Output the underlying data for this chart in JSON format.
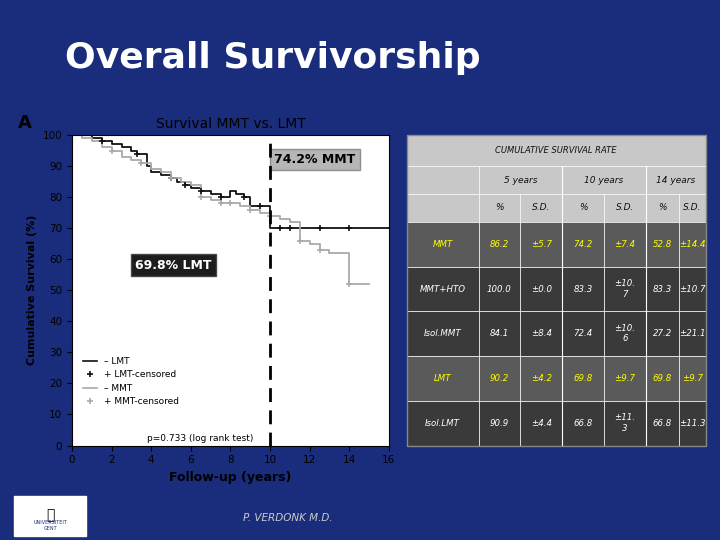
{
  "title": "Overall Survivorship",
  "subtitle": "Survival MMT vs. LMT",
  "panel_label": "A",
  "xlabel": "Follow-up (years)",
  "ylabel": "Cumulative Survival (%)",
  "xlim": [
    0,
    16
  ],
  "ylim": [
    0,
    100
  ],
  "xticks": [
    0,
    2,
    4,
    6,
    8,
    10,
    12,
    14,
    16
  ],
  "yticks": [
    0,
    10,
    20,
    30,
    40,
    50,
    60,
    70,
    80,
    90,
    100
  ],
  "dashed_line_x": 10,
  "annotation_mmt": "74.2% MMT",
  "annotation_lmt": "69.8% LMT",
  "p_value": "p=0.733 (log rank test)",
  "bg_color": "#1a2d7c",
  "title_color": "#ffffff",
  "lmt_color": "#111111",
  "mmt_color": "#aaaaaa",
  "lmt_x": [
    0,
    0.3,
    1,
    1.5,
    2,
    2.5,
    3,
    3.3,
    3.8,
    4.0,
    4.5,
    5.0,
    5.3,
    5.7,
    6.0,
    6.5,
    7.0,
    7.5,
    8.0,
    8.3,
    8.7,
    9.0,
    9.5,
    10.0,
    10.5,
    11.0,
    12.0,
    13.0,
    14.0,
    15.0,
    16.0
  ],
  "lmt_y": [
    100,
    100,
    99,
    98,
    97,
    96,
    95,
    94,
    90,
    88,
    87,
    86,
    85,
    84,
    83,
    82,
    81,
    80,
    82,
    81,
    80,
    77,
    77,
    70,
    70,
    70,
    70,
    70,
    70,
    70,
    70
  ],
  "mmt_x": [
    0,
    0.5,
    1.0,
    1.5,
    2.0,
    2.5,
    3.0,
    3.5,
    4.0,
    4.5,
    5.0,
    5.5,
    6.0,
    6.5,
    7.0,
    7.5,
    8.0,
    8.5,
    9.0,
    9.5,
    10.0,
    10.5,
    11.0,
    11.5,
    12.0,
    12.5,
    13.0,
    14.0,
    14.5,
    15.0
  ],
  "mmt_y": [
    100,
    99,
    98,
    96,
    95,
    93,
    92,
    91,
    89,
    88,
    86,
    85,
    84,
    80,
    79,
    78,
    78,
    77,
    76,
    75,
    74,
    73,
    72,
    66,
    65,
    63,
    62,
    52,
    52,
    52
  ],
  "lmt_censor_x": [
    1.5,
    3.3,
    5.0,
    5.7,
    6.5,
    7.5,
    8.7,
    9.5,
    10.5,
    11.0,
    12.5,
    14.0
  ],
  "lmt_censor_y": [
    98,
    94,
    86,
    84,
    82,
    80,
    80,
    77,
    70,
    70,
    70,
    70
  ],
  "mmt_censor_x": [
    2.0,
    3.5,
    5.0,
    6.5,
    7.5,
    8.0,
    9.0,
    10.0,
    11.5,
    12.5,
    14.0
  ],
  "mmt_censor_y": [
    95,
    91,
    86,
    80,
    78,
    78,
    76,
    74,
    66,
    63,
    52
  ],
  "table_header": "CUMULATIVE SURVIVAL RATE",
  "table_rows": [
    {
      "label": "MMT",
      "v5": "86.2",
      "sd5": "±5.7",
      "v10": "74.2",
      "sd10": "±7.4",
      "v14": "52.8",
      "sd14": "±14.4",
      "highlight": true
    },
    {
      "label": "MMT+HTO",
      "v5": "100.0",
      "sd5": "±0.0",
      "v10": "83.3",
      "sd10": "±10.\n7",
      "v14": "83.3",
      "sd14": "±10.7",
      "highlight": false
    },
    {
      "label": "Isol.MMT",
      "v5": "84.1",
      "sd5": "±8.4",
      "v10": "72.4",
      "sd10": "±10.\n6",
      "v14": "27.2",
      "sd14": "±21.1",
      "highlight": false
    },
    {
      "label": "LMT",
      "v5": "90.2",
      "sd5": "±4.2",
      "v10": "69.8",
      "sd10": "±9.7",
      "v14": "69.8",
      "sd14": "±9.7",
      "highlight": true
    },
    {
      "label": "Isol.LMT",
      "v5": "90.9",
      "sd5": "±4.4",
      "v10": "66.8",
      "sd10": "±11.\n3",
      "v14": "66.8",
      "sd14": "±11.3",
      "highlight": false
    }
  ],
  "footer_text": "P. VERDONK M.D."
}
